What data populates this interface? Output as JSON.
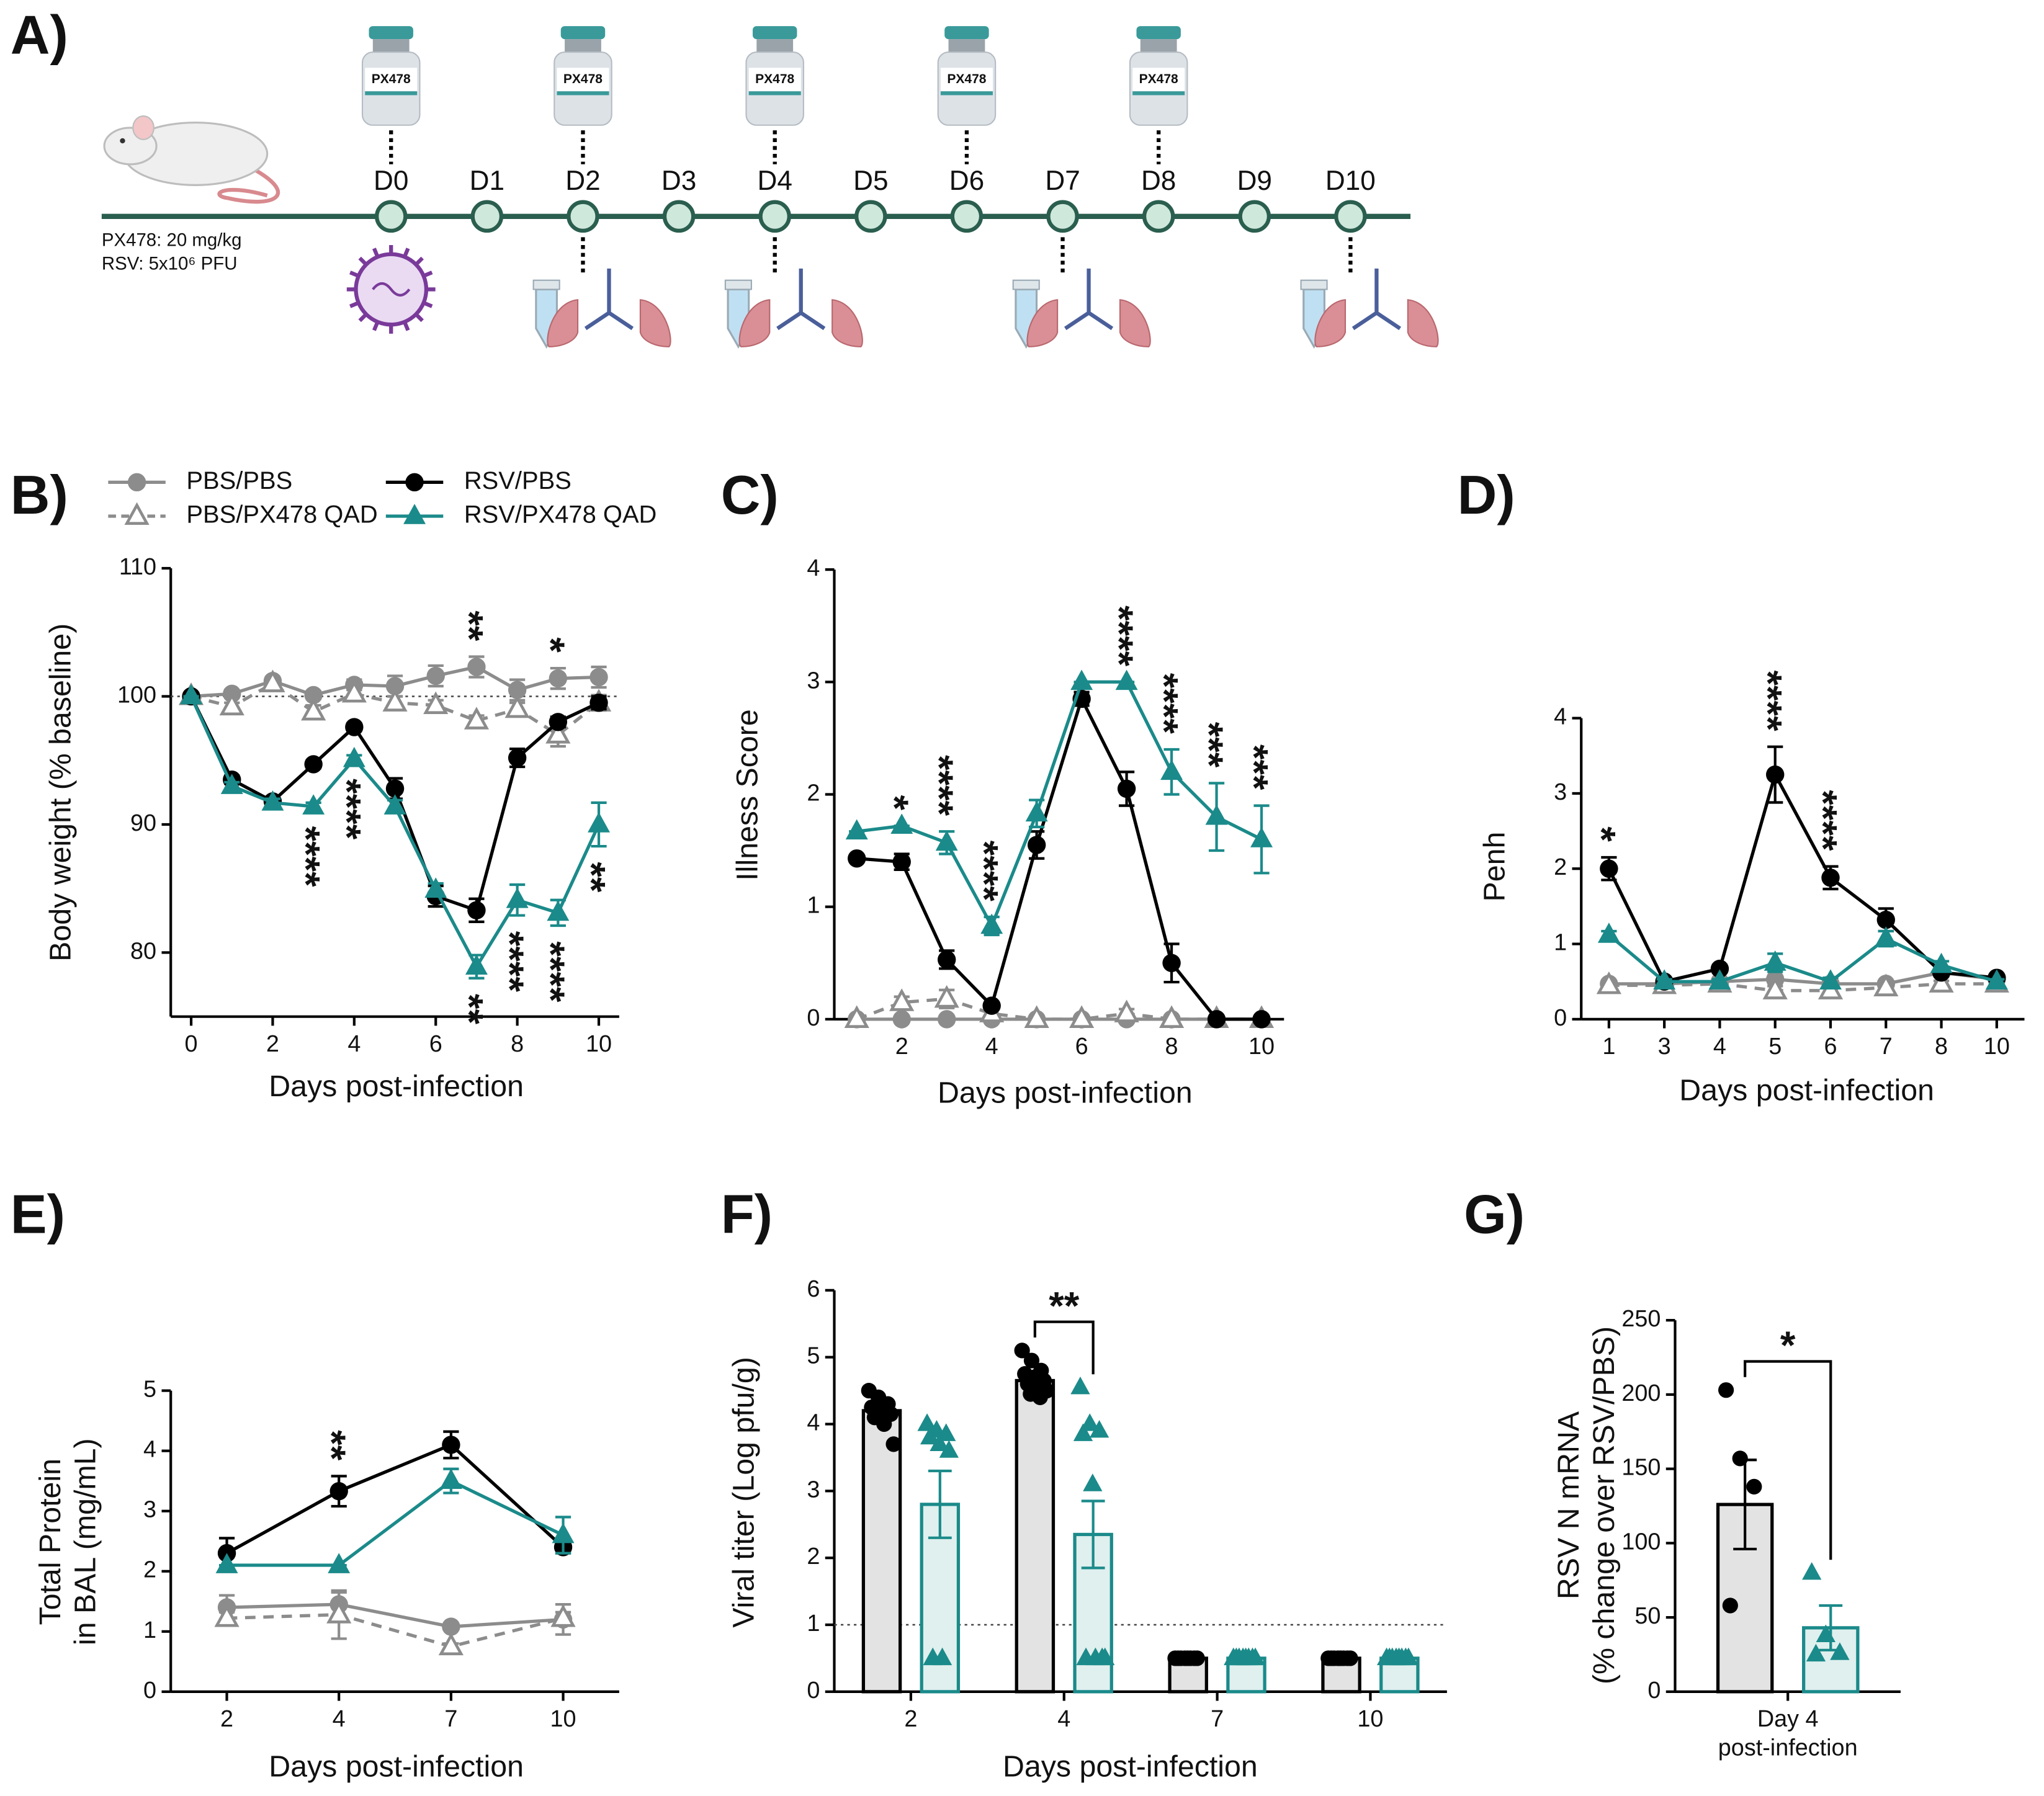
{
  "timeline": {
    "panel": "A)",
    "days": [
      "D0",
      "D1",
      "D2",
      "D3",
      "D4",
      "D5",
      "D6",
      "D7",
      "D8",
      "D9",
      "D10"
    ],
    "drug_label": "PX478",
    "notes": [
      "PX478: 20 mg/kg",
      "RSV: 5x10⁶ PFU"
    ],
    "dosing_days": [
      "D0",
      "D2",
      "D4",
      "D6",
      "D8"
    ],
    "sampling_days": [
      "D2",
      "D4",
      "D7",
      "D10"
    ],
    "infection_day": "D0"
  },
  "chart_data": [
    {
      "panel": "B)",
      "type": "line",
      "xlabel": "Days post-infection",
      "ylabel": "Body weight (% baseline)",
      "x": [
        0,
        1,
        2,
        3,
        4,
        5,
        6,
        7,
        8,
        9,
        10
      ],
      "xlim": [
        -0.5,
        10.5
      ],
      "xticks": [
        0,
        2,
        4,
        6,
        8,
        10
      ],
      "ylim": [
        75,
        110
      ],
      "yticks": [
        80,
        90,
        100,
        110
      ],
      "reference_line": 100,
      "series": [
        {
          "name": "PBS/PBS",
          "color": "#8c8c8c",
          "marker": "circle",
          "dash": false,
          "values": [
            100,
            100.2,
            101.2,
            100.1,
            100.9,
            100.8,
            101.6,
            102.3,
            100.5,
            101.4,
            101.5
          ],
          "errors": [
            0,
            0.3,
            0.3,
            0.3,
            0.4,
            0.8,
            0.8,
            0.8,
            0.8,
            0.8,
            0.8
          ]
        },
        {
          "name": "PBS/PX478 QAD",
          "color": "#8c8c8c",
          "marker": "triangle-open",
          "dash": true,
          "values": [
            100,
            99.2,
            101,
            98.8,
            100.2,
            99.5,
            99.3,
            98.1,
            99,
            97,
            99.5
          ],
          "errors": [
            0,
            0.3,
            0.3,
            0.5,
            0.4,
            0.5,
            0.4,
            0.4,
            0.5,
            0.9,
            0.6
          ]
        },
        {
          "name": "RSV/PBS",
          "color": "#000000",
          "marker": "circle",
          "dash": false,
          "values": [
            100,
            93.5,
            91.8,
            94.7,
            97.6,
            92.8,
            84.4,
            83.3,
            95.2,
            98,
            99.5
          ],
          "errors": [
            0,
            0.3,
            0.3,
            0.3,
            0.3,
            0.8,
            0.8,
            0.9,
            0.7,
            0.4,
            0.5
          ]
        },
        {
          "name": "RSV/PX478 QAD",
          "color": "#1b8a8a",
          "marker": "triangle",
          "dash": false,
          "values": [
            100,
            93,
            91.7,
            91.4,
            95.1,
            91.4,
            84.9,
            78.9,
            84.1,
            83.1,
            90
          ],
          "errors": [
            0,
            0.3,
            0.3,
            0.3,
            0.3,
            0.5,
            0.5,
            0.9,
            1.2,
            1,
            1.7
          ]
        }
      ],
      "annotations": [
        {
          "x": 3,
          "text": "****",
          "position": "below",
          "color": "#1b8a8a"
        },
        {
          "x": 4,
          "text": "****",
          "position": "below",
          "color": "#1b8a8a"
        },
        {
          "x": 7,
          "text": "**",
          "position": "below",
          "color": "#1b8a8a"
        },
        {
          "x": 8,
          "text": "****",
          "position": "below",
          "color": "#1b8a8a"
        },
        {
          "x": 9,
          "text": "****",
          "position": "below",
          "color": "#1b8a8a"
        },
        {
          "x": 10,
          "text": "**",
          "position": "below",
          "color": "#1b8a8a"
        },
        {
          "x": 7,
          "text": "**",
          "position": "above",
          "color": "#8c8c8c"
        },
        {
          "x": 9,
          "text": "*",
          "position": "above",
          "color": "#8c8c8c"
        }
      ]
    },
    {
      "panel": "C)",
      "type": "line",
      "xlabel": "Days post-infection",
      "ylabel": "Illness Score",
      "x": [
        1,
        2,
        3,
        4,
        5,
        6,
        7,
        8,
        9,
        10
      ],
      "xlim": [
        0.5,
        10.5
      ],
      "xticks": [
        2,
        4,
        6,
        8,
        10
      ],
      "ylim": [
        0,
        4
      ],
      "yticks": [
        0,
        1,
        2,
        3,
        4
      ],
      "series": [
        {
          "color": "#8c8c8c",
          "marker": "circle",
          "dash": false,
          "values": [
            0,
            0,
            0,
            0,
            0,
            0,
            0,
            0,
            0,
            0
          ],
          "errors": [
            0,
            0,
            0,
            0,
            0,
            0,
            0,
            0,
            0,
            0
          ]
        },
        {
          "color": "#8c8c8c",
          "marker": "triangle-open",
          "dash": true,
          "values": [
            0,
            0.15,
            0.18,
            0.05,
            0,
            0,
            0.05,
            0,
            0,
            0
          ],
          "errors": [
            0,
            0.05,
            0.08,
            0.05,
            0,
            0,
            0.04,
            0,
            0,
            0
          ]
        },
        {
          "color": "#000000",
          "marker": "circle",
          "dash": false,
          "values": [
            1.43,
            1.4,
            0.53,
            0.12,
            1.55,
            2.85,
            2.05,
            0.5,
            0,
            0
          ],
          "errors": [
            0,
            0.07,
            0.08,
            0,
            0.12,
            0.06,
            0.15,
            0.17,
            0,
            0
          ]
        },
        {
          "color": "#1b8a8a",
          "marker": "triangle",
          "dash": false,
          "values": [
            1.67,
            1.72,
            1.57,
            0.83,
            1.83,
            3,
            3,
            2.2,
            1.8,
            1.6
          ],
          "errors": [
            0,
            0,
            0.1,
            0.08,
            0.12,
            0,
            0,
            0.2,
            0.3,
            0.3
          ]
        }
      ],
      "annotations": [
        {
          "x": 2,
          "text": "*",
          "position": "above",
          "color": "#1b8a8a"
        },
        {
          "x": 3,
          "text": "****",
          "position": "above",
          "color": "#1b8a8a"
        },
        {
          "x": 4,
          "text": "****",
          "position": "above",
          "color": "#1b8a8a"
        },
        {
          "x": 7,
          "text": "****",
          "position": "above",
          "color": "#1b8a8a"
        },
        {
          "x": 8,
          "text": "****",
          "position": "above",
          "color": "#1b8a8a"
        },
        {
          "x": 9,
          "text": "***",
          "position": "above",
          "color": "#1b8a8a"
        },
        {
          "x": 10,
          "text": "***",
          "position": "above",
          "color": "#1b8a8a"
        }
      ]
    },
    {
      "panel": "D)",
      "type": "line",
      "xlabel": "Days post-infection",
      "ylabel": "Penh",
      "categories": [
        1,
        3,
        4,
        5,
        6,
        7,
        8,
        10
      ],
      "ylim": [
        0,
        4
      ],
      "yticks": [
        0,
        1,
        2,
        3,
        4
      ],
      "series": [
        {
          "color": "#8c8c8c",
          "marker": "circle",
          "dash": false,
          "values": [
            0.47,
            0.47,
            0.5,
            0.53,
            0.47,
            0.47,
            0.62,
            0.53
          ],
          "errors": [
            0.03,
            0.03,
            0.03,
            0.05,
            0.03,
            0.03,
            0.05,
            0.04
          ]
        },
        {
          "color": "#8c8c8c",
          "marker": "triangle-open",
          "dash": true,
          "values": [
            0.45,
            0.45,
            0.47,
            0.38,
            0.38,
            0.42,
            0.47,
            0.47
          ],
          "errors": [
            0.03,
            0.03,
            0.05,
            0.06,
            0.06,
            0.05,
            0.04,
            0.03
          ]
        },
        {
          "color": "#000000",
          "marker": "circle",
          "dash": false,
          "values": [
            2,
            0.5,
            0.67,
            3.25,
            1.88,
            1.32,
            0.62,
            0.55
          ],
          "errors": [
            0.15,
            0.04,
            0.05,
            0.37,
            0.15,
            0.15,
            0.05,
            0.04
          ]
        },
        {
          "color": "#1b8a8a",
          "marker": "triangle",
          "dash": false,
          "values": [
            1.12,
            0.5,
            0.5,
            0.75,
            0.5,
            1.07,
            0.72,
            0.5
          ],
          "errors": [
            0.05,
            0.03,
            0.03,
            0.12,
            0.05,
            0.1,
            0.05,
            0.03
          ]
        }
      ],
      "annotations": [
        {
          "x": 1,
          "text": "*",
          "position": "above",
          "color": "#1b8a8a"
        },
        {
          "x": 5,
          "text": "****",
          "position": "above",
          "color": "#1b8a8a"
        },
        {
          "x": 6,
          "text": "****",
          "position": "above",
          "color": "#1b8a8a"
        }
      ]
    },
    {
      "panel": "E)",
      "type": "line",
      "xlabel": "Days post-infection",
      "ylabel": [
        "Total Protein",
        "in BAL (mg/mL)"
      ],
      "categories": [
        2,
        4,
        7,
        10
      ],
      "ylim": [
        0,
        5
      ],
      "yticks": [
        0,
        1,
        2,
        3,
        4,
        5
      ],
      "series": [
        {
          "color": "#8c8c8c",
          "marker": "circle",
          "dash": false,
          "values": [
            1.4,
            1.45,
            1.08,
            1.2
          ],
          "errors": [
            0.2,
            0.2,
            0.05,
            0.25
          ]
        },
        {
          "color": "#8c8c8c",
          "marker": "triangle-open",
          "dash": true,
          "values": [
            1.22,
            1.28,
            0.75,
            1.22
          ],
          "errors": [
            0.1,
            0.4,
            0.05,
            0.1
          ]
        },
        {
          "color": "#000000",
          "marker": "circle",
          "dash": false,
          "values": [
            2.3,
            3.33,
            4.1,
            2.4
          ],
          "errors": [
            0.25,
            0.25,
            0.22,
            0.1
          ]
        },
        {
          "color": "#1b8a8a",
          "marker": "triangle",
          "dash": false,
          "values": [
            2.1,
            2.1,
            3.5,
            2.6
          ],
          "errors": [
            0,
            0,
            0.2,
            0.3
          ]
        }
      ],
      "annotations": [
        {
          "x": 4,
          "text": "**",
          "position": "above",
          "color": "#1b8a8a"
        }
      ]
    },
    {
      "panel": "F)",
      "type": "bar",
      "xlabel": "Days post-infection",
      "ylabel": "Viral titer (Log pfu/g)",
      "categories": [
        2,
        4,
        7,
        10
      ],
      "ylim": [
        0,
        6
      ],
      "yticks": [
        0,
        1,
        2,
        3,
        4,
        5,
        6
      ],
      "reference_line": 1,
      "series": [
        {
          "color": "#000000",
          "fill": "#e3e3e3",
          "marker": "circle",
          "values": [
            4.2,
            4.65,
            0.5,
            0.5
          ],
          "errors": [
            0.1,
            0.1,
            0,
            0
          ],
          "points": [
            [
              4.5,
              4.4,
              4.3,
              4.25,
              4.2,
              4.15,
              4.1,
              4.0,
              3.7
            ],
            [
              5.1,
              4.95,
              4.8,
              4.75,
              4.7,
              4.65,
              4.6,
              4.55,
              4.5,
              4.45,
              4.4
            ],
            [
              0.5,
              0.5,
              0.5,
              0.5,
              0.5,
              0.5,
              0.5,
              0.5
            ],
            [
              0.5,
              0.5,
              0.5,
              0.5,
              0.5,
              0.5,
              0.5,
              0.5
            ]
          ]
        },
        {
          "color": "#1b8a8a",
          "fill": "#dff0ee",
          "marker": "triangle",
          "values": [
            2.8,
            2.35,
            0.5,
            0.5
          ],
          "errors": [
            0.5,
            0.5,
            0,
            0
          ],
          "points": [
            [
              4,
              3.9,
              3.85,
              3.8,
              3.7,
              3.6,
              0.5,
              0.5
            ],
            [
              4.55,
              4.0,
              3.9,
              3.85,
              3.1,
              0.5,
              0.5,
              0.5,
              0.5
            ],
            [
              0.5,
              0.5,
              0.5,
              0.5,
              0.5,
              0.5,
              0.5,
              0.5
            ],
            [
              0.5,
              0.5,
              0.5,
              0.5,
              0.5,
              0.5,
              0.5,
              0.5
            ]
          ]
        }
      ],
      "annotations": [
        {
          "x": 4,
          "text": "**"
        }
      ]
    },
    {
      "panel": "G)",
      "type": "bar",
      "ylabel": [
        "RSV N mRNA",
        "(% change over RSV/PBS)"
      ],
      "categories": [
        [
          "Day 4",
          "post-infection"
        ]
      ],
      "ylim": [
        0,
        250
      ],
      "yticks": [
        0,
        50,
        100,
        150,
        200,
        250
      ],
      "series": [
        {
          "color": "#000000",
          "fill": "#e3e3e3",
          "marker": "circle",
          "values": [
            126
          ],
          "errors": [
            30
          ],
          "points": [
            [
              203,
              157,
              138,
              58
            ]
          ]
        },
        {
          "color": "#1b8a8a",
          "fill": "#dff0ee",
          "marker": "triangle",
          "values": [
            43
          ],
          "errors": [
            15
          ],
          "points": [
            [
              80,
              38,
              26,
              25
            ]
          ]
        }
      ],
      "annotations": [
        {
          "text": "*"
        }
      ]
    }
  ]
}
